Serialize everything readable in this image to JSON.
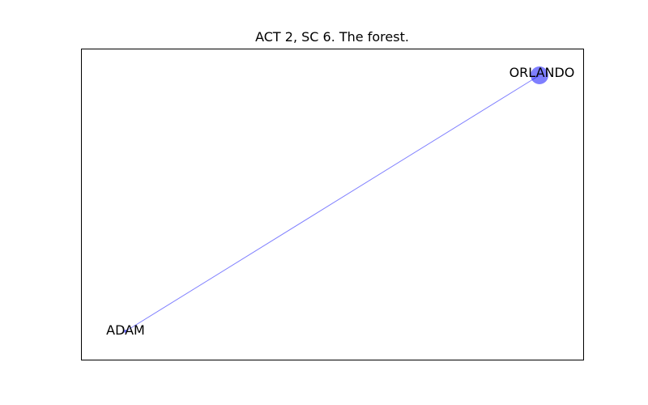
{
  "title": "ACT 2, SC 6. The forest.",
  "colors": {
    "edge": "#0000ff",
    "node": "#0000ff",
    "frame": "#000000",
    "background": "#ffffff"
  },
  "graph": {
    "nodes": [
      {
        "id": "orlando",
        "label": "ORLANDO",
        "size": "large"
      },
      {
        "id": "adam",
        "label": "ADAM",
        "size": "small"
      }
    ],
    "edges": [
      {
        "source": "adam",
        "target": "orlando"
      }
    ]
  }
}
